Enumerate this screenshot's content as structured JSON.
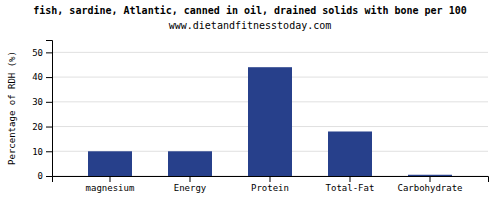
{
  "chart_data": {
    "type": "bar",
    "title": "fish, sardine, Atlantic, canned in oil, drained solids with bone per 100",
    "subtitle": "www.dietandfitnesstoday.com",
    "categories": [
      "magnesium",
      "Energy",
      "Protein",
      "Total-Fat",
      "Carbohydrate"
    ],
    "values": [
      10.0,
      10.0,
      44.0,
      18.0,
      0.5
    ],
    "color": "#27408B",
    "ylabel": "Percentage of RDH (%)",
    "ylim": [
      0,
      55
    ],
    "yticks": [
      0,
      10,
      20,
      30,
      40,
      50
    ],
    "grid": true
  }
}
